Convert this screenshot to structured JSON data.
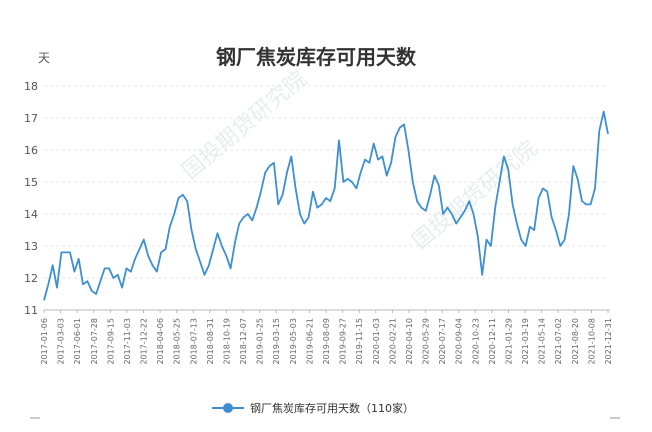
{
  "chart_data": {
    "type": "line",
    "title": "钢厂焦炭库存可用天数",
    "ylabel": "天",
    "ylim": [
      11,
      18
    ],
    "yticks": [
      11,
      12,
      13,
      14,
      15,
      16,
      17,
      18
    ],
    "xtick_labels": [
      "2017-01-06",
      "2017-03-03",
      "2017-06-01",
      "2017-07-28",
      "2017-09-15",
      "2017-11-03",
      "2017-12-22",
      "2018-04-06",
      "2018-05-25",
      "2018-07-13",
      "2018-08-31",
      "2018-10-19",
      "2018-12-07",
      "2019-01-25",
      "2019-03-15",
      "2019-05-03",
      "2019-06-21",
      "2019-08-09",
      "2019-09-27",
      "2019-11-15",
      "2020-01-03",
      "2020-02-21",
      "2020-04-10",
      "2020-05-29",
      "2020-07-17",
      "2020-09-04",
      "2020-10-23",
      "2020-12-11",
      "2021-01-29",
      "2021-03-19",
      "2021-05-14",
      "2021-07-02",
      "2021-08-20",
      "2021-10-08",
      "2021-12-31"
    ],
    "series": [
      {
        "name": "钢厂焦炭库存可用天数（110家）",
        "color": "#3d8fd1",
        "values": [
          11.3,
          11.8,
          12.4,
          11.7,
          12.8,
          12.8,
          12.8,
          12.2,
          12.6,
          11.8,
          11.9,
          11.6,
          11.5,
          11.9,
          12.3,
          12.3,
          12.0,
          12.1,
          11.7,
          12.3,
          12.2,
          12.6,
          12.9,
          13.2,
          12.7,
          12.4,
          12.2,
          12.8,
          12.9,
          13.6,
          14.0,
          14.5,
          14.6,
          14.4,
          13.5,
          12.9,
          12.5,
          12.1,
          12.4,
          12.9,
          13.4,
          13.0,
          12.7,
          12.3,
          13.1,
          13.7,
          13.9,
          14.0,
          13.8,
          14.2,
          14.7,
          15.3,
          15.5,
          15.6,
          14.3,
          14.6,
          15.3,
          15.8,
          14.8,
          14.0,
          13.7,
          13.9,
          14.7,
          14.2,
          14.3,
          14.5,
          14.4,
          14.8,
          16.3,
          15.0,
          15.1,
          15.0,
          14.8,
          15.3,
          15.7,
          15.6,
          16.2,
          15.7,
          15.8,
          15.2,
          15.6,
          16.4,
          16.7,
          16.8,
          16.0,
          15.0,
          14.4,
          14.2,
          14.1,
          14.6,
          15.2,
          14.9,
          14.0,
          14.2,
          14.0,
          13.7,
          13.9,
          14.1,
          14.4,
          14.0,
          13.3,
          12.1,
          13.2,
          13.0,
          14.2,
          15.0,
          15.8,
          15.4,
          14.3,
          13.7,
          13.2,
          13.0,
          13.6,
          13.5,
          14.5,
          14.8,
          14.7,
          13.9,
          13.5,
          13.0,
          13.2,
          14.0,
          15.5,
          15.1,
          14.4,
          14.3,
          14.3,
          14.8,
          16.6,
          17.2,
          16.5
        ]
      }
    ],
    "legend_position": "bottom-center",
    "grid": true
  },
  "watermark": {
    "text": "国投期货研究院"
  }
}
